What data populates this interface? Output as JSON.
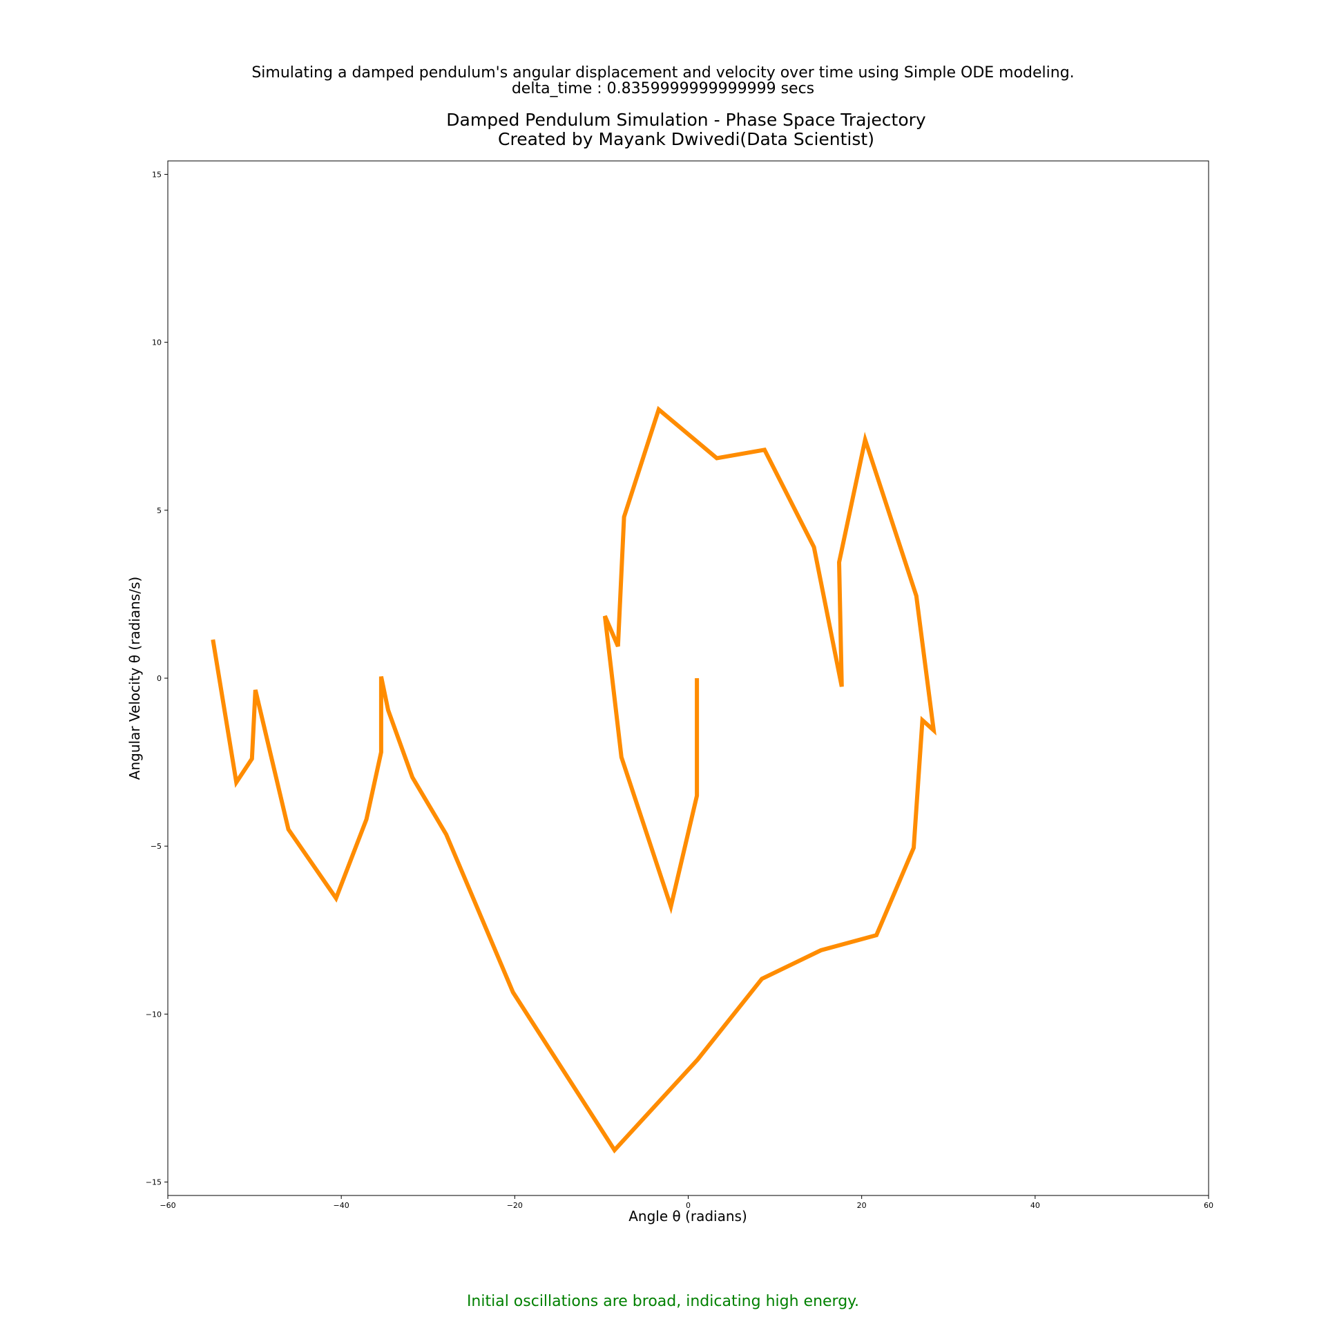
{
  "suptitle": {
    "line1": "Simulating a damped pendulum's angular displacement and velocity over time using Simple ODE modeling.",
    "line2": "delta_time : 0.8359999999999999 secs"
  },
  "caption": {
    "text": "Initial oscillations are broad, indicating high energy.",
    "color": "#008000"
  },
  "chart_data": {
    "type": "line",
    "title_line1": "Damped Pendulum Simulation - Phase Space Trajectory",
    "title_line2": "Created by Mayank Dwivedi(Data Scientist)",
    "xlabel": "Angle θ (radians)",
    "ylabel": "Angular Velocity θ (radians/s)",
    "xlim": [
      -60,
      60
    ],
    "ylim": [
      -15.4,
      15.4
    ],
    "x_ticks": [
      -60,
      -40,
      -20,
      0,
      20,
      40,
      60
    ],
    "x_tick_labels": [
      "−60",
      "−40",
      "−20",
      "0",
      "20",
      "40",
      "60"
    ],
    "y_ticks": [
      -15,
      -10,
      -5,
      0,
      5,
      10,
      15
    ],
    "y_tick_labels": [
      "−15",
      "−10",
      "−5",
      "0",
      "5",
      "10",
      "15"
    ],
    "grid": false,
    "series": [
      {
        "color": "#ff8c00",
        "x": [
          1.0,
          1.0,
          -2.0,
          -7.7,
          -9.6,
          -8.1,
          -7.4,
          -3.4,
          3.3,
          8.8,
          14.5,
          17.7,
          17.4,
          20.4,
          26.3,
          28.3,
          27.0,
          26.0,
          21.7,
          15.3,
          8.5,
          1.1,
          -8.5,
          -20.2,
          -27.9,
          -31.8,
          -34.6,
          -35.4,
          -35.4,
          -37.1,
          -40.6,
          -46.1,
          -49.9,
          -50.3,
          -52.1,
          -54.8
        ],
        "y": [
          0.0,
          -3.5,
          -6.8,
          -2.35,
          1.85,
          0.95,
          4.8,
          8.0,
          6.55,
          6.8,
          3.9,
          -0.25,
          3.45,
          7.1,
          2.45,
          -1.55,
          -1.25,
          -5.05,
          -7.65,
          -8.1,
          -8.95,
          -11.35,
          -14.05,
          -9.35,
          -4.65,
          -2.95,
          -0.95,
          0.05,
          -2.2,
          -4.2,
          -6.55,
          -4.5,
          -0.35,
          -2.4,
          -3.1,
          1.15
        ]
      }
    ]
  }
}
